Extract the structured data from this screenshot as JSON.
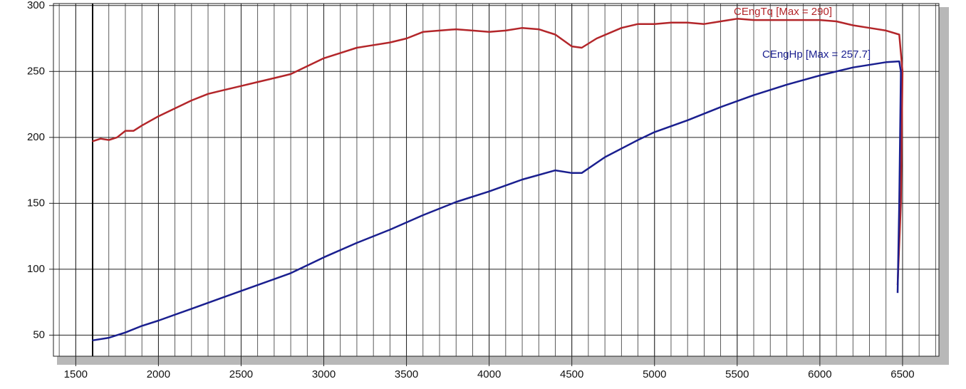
{
  "chart_data": {
    "type": "line",
    "series": [
      {
        "name": "CEngTq [Max = 290]",
        "color": "#b3262a",
        "x": [
          1600,
          1650,
          1700,
          1750,
          1800,
          1850,
          1900,
          2000,
          2100,
          2200,
          2300,
          2400,
          2500,
          2600,
          2700,
          2800,
          2900,
          3000,
          3100,
          3200,
          3300,
          3400,
          3500,
          3600,
          3700,
          3800,
          3900,
          4000,
          4100,
          4200,
          4300,
          4400,
          4500,
          4560,
          4650,
          4800,
          4900,
          5000,
          5100,
          5200,
          5300,
          5400,
          5500,
          5600,
          5700,
          5800,
          5900,
          6000,
          6100,
          6200,
          6300,
          6400,
          6480,
          6500,
          6490,
          6470
        ],
        "values": [
          197,
          199,
          198,
          200,
          205,
          205,
          209,
          216,
          222,
          228,
          233,
          236,
          239,
          242,
          245,
          248,
          254,
          260,
          264,
          268,
          270,
          272,
          275,
          280,
          281,
          282,
          281,
          280,
          281,
          283,
          282,
          278,
          269,
          268,
          275,
          283,
          286,
          286,
          287,
          287,
          286,
          288,
          290,
          289,
          289,
          289,
          289,
          289,
          288,
          285,
          283,
          281,
          278,
          250,
          150,
          88
        ]
      },
      {
        "name": "CEngHp [Max = 257.7]",
        "color": "#1a1f8f",
        "x": [
          1600,
          1700,
          1800,
          1900,
          2000,
          2200,
          2400,
          2600,
          2800,
          3000,
          3200,
          3400,
          3600,
          3800,
          4000,
          4200,
          4400,
          4500,
          4560,
          4700,
          4900,
          5000,
          5200,
          5400,
          5600,
          5800,
          6000,
          6200,
          6400,
          6480,
          6490,
          6480,
          6470
        ],
        "values": [
          46,
          48,
          52,
          57,
          61,
          70,
          79,
          88,
          97,
          109,
          120,
          130,
          141,
          151,
          159,
          168,
          175,
          173,
          173,
          185,
          198,
          204,
          213,
          223,
          232,
          240,
          247,
          253,
          257,
          257.7,
          250,
          150,
          82
        ]
      }
    ],
    "xlim": [
      1365,
      6720
    ],
    "ylim": [
      34,
      301.5
    ],
    "xticks": [
      1500,
      2000,
      2500,
      3000,
      3500,
      4000,
      4500,
      5000,
      5500,
      6000,
      6500
    ],
    "yticks": [
      50,
      100,
      150,
      200,
      250,
      300
    ],
    "grid": true,
    "xgrid_step": 100
  }
}
